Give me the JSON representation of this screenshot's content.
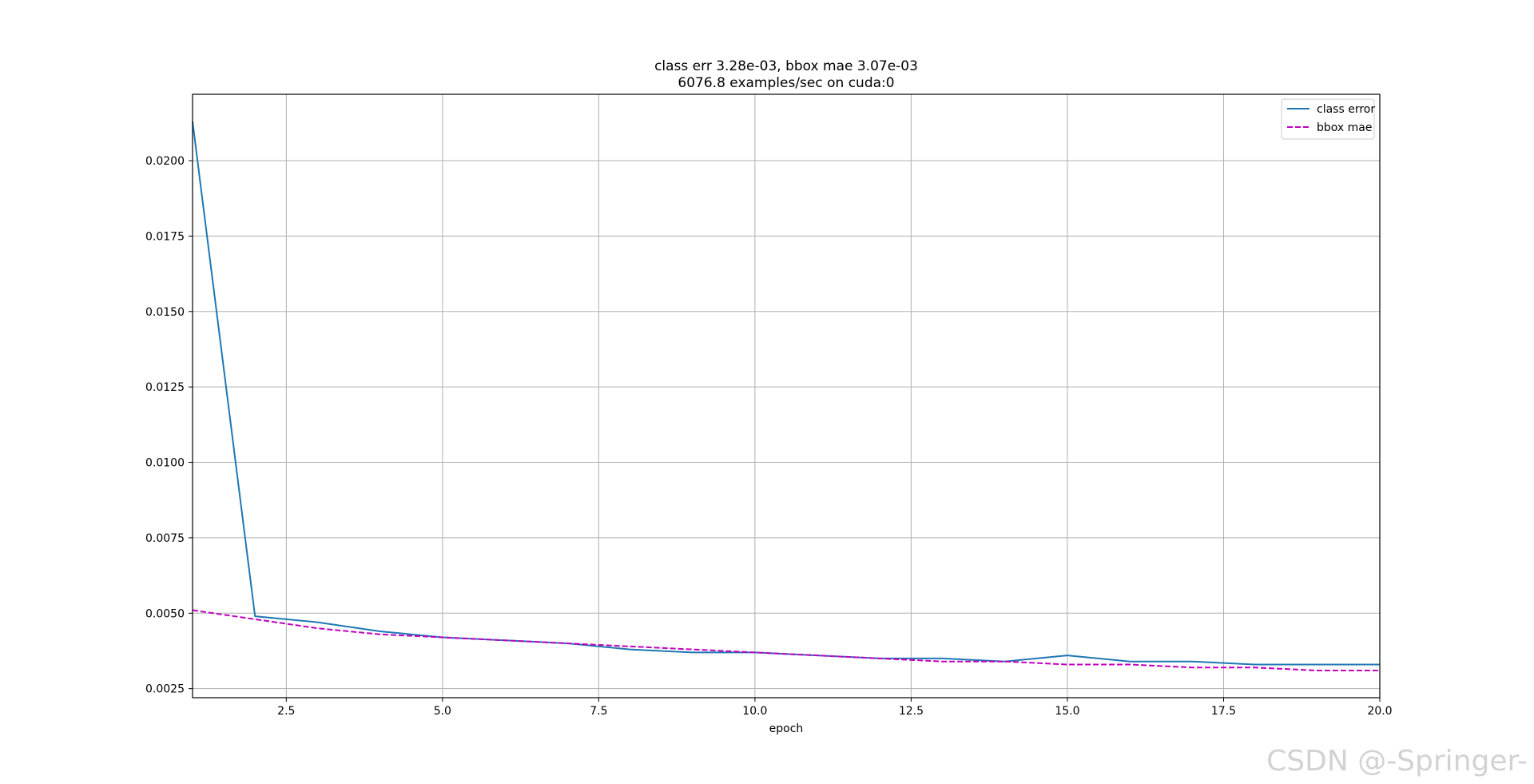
{
  "chart_data": {
    "type": "line",
    "title": "class err 3.28e-03, bbox mae 3.07e-03",
    "subtitle": "6076.8 examples/sec on cuda:0",
    "xlabel": "epoch",
    "ylabel": "",
    "xlim": [
      1,
      20
    ],
    "ylim": [
      0.0022,
      0.0222
    ],
    "grid": true,
    "legend_position": "top-right",
    "x_ticks": [
      2.5,
      5.0,
      7.5,
      10.0,
      12.5,
      15.0,
      17.5,
      20.0
    ],
    "x_tick_labels": [
      "2.5",
      "5.0",
      "7.5",
      "10.0",
      "12.5",
      "15.0",
      "17.5",
      "20.0"
    ],
    "y_ticks": [
      0.0025,
      0.005,
      0.0075,
      0.01,
      0.0125,
      0.015,
      0.0175,
      0.02
    ],
    "y_tick_labels": [
      "0.0025",
      "0.0050",
      "0.0075",
      "0.0100",
      "0.0125",
      "0.0150",
      "0.0175",
      "0.0200"
    ],
    "x": [
      1,
      2,
      3,
      4,
      5,
      6,
      7,
      8,
      9,
      10,
      11,
      12,
      13,
      14,
      15,
      16,
      17,
      18,
      19,
      20
    ],
    "series": [
      {
        "name": "class error",
        "color": "#1f77b4",
        "dash": "solid",
        "values": [
          0.0213,
          0.0049,
          0.0047,
          0.0044,
          0.0042,
          0.0041,
          0.004,
          0.0038,
          0.0037,
          0.0037,
          0.0036,
          0.0035,
          0.0035,
          0.0034,
          0.0036,
          0.0034,
          0.0034,
          0.0033,
          0.0033,
          0.0033
        ]
      },
      {
        "name": "bbox mae",
        "color": "#bf00bf",
        "dash": "dashed",
        "values": [
          0.0051,
          0.0048,
          0.0045,
          0.0043,
          0.0042,
          0.0041,
          0.004,
          0.0039,
          0.0038,
          0.0037,
          0.0036,
          0.0035,
          0.0034,
          0.0034,
          0.0033,
          0.0033,
          0.0032,
          0.0032,
          0.0031,
          0.0031
        ]
      }
    ]
  },
  "watermark": "CSDN @-Springer-"
}
